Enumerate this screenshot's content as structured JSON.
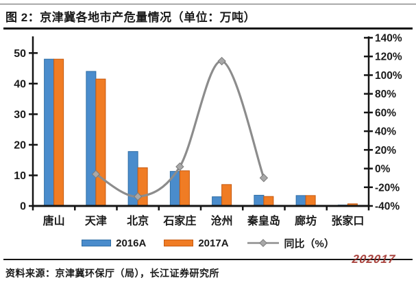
{
  "header": {
    "title": "图 2：京津冀各地市产危量情况（单位：万吨）"
  },
  "footer": {
    "source": "资料来源：京津冀环保厅（局），长江证券研究所",
    "watermark": "202017"
  },
  "colors": {
    "bar_2016": "#4a8ccc",
    "bar_2016_border": "#2e6da4",
    "bar_2017": "#f07c24",
    "bar_2017_border": "#c55a11",
    "line": "#8c8c8c",
    "marker_fill": "#a8a8a8",
    "marker_border": "#7a7a7a",
    "axis": "#141414",
    "text": "#1a1a1a",
    "watermark": "#9e2b25"
  },
  "chart_data": {
    "type": "bar",
    "subtype": "bar+line-combo",
    "title": "图 2：京津冀各地市产危量情况（单位：万吨）",
    "categories": [
      "唐山",
      "天津",
      "北京",
      "石家庄",
      "沧州",
      "秦皇岛",
      "廊坊",
      "张家口"
    ],
    "series": [
      {
        "name": "2016A",
        "type": "bar",
        "axis": "left",
        "values": [
          48,
          44,
          17.8,
          11.3,
          3,
          3.5,
          3.4,
          0.3
        ]
      },
      {
        "name": "2017A",
        "type": "bar",
        "axis": "left",
        "values": [
          48,
          41.5,
          12.5,
          11.5,
          7,
          3.1,
          3.4,
          0.7
        ]
      },
      {
        "name": "同比（%）",
        "type": "line",
        "axis": "right",
        "values": [
          null,
          -6,
          -30,
          2,
          115,
          -10,
          null,
          null
        ]
      }
    ],
    "left_axis": {
      "ticks": [
        0,
        10,
        20,
        30,
        40,
        50
      ],
      "min": 0,
      "max": 55,
      "grid": false
    },
    "right_axis": {
      "tick_labels": [
        "-40%",
        "-20%",
        "0%",
        "20%",
        "40%",
        "60%",
        "80%",
        "100%",
        "120%",
        "140%"
      ],
      "tick_values": [
        -40,
        -20,
        0,
        20,
        40,
        60,
        80,
        100,
        120,
        140
      ],
      "min": -40,
      "max": 140
    },
    "legend_position": "bottom"
  }
}
